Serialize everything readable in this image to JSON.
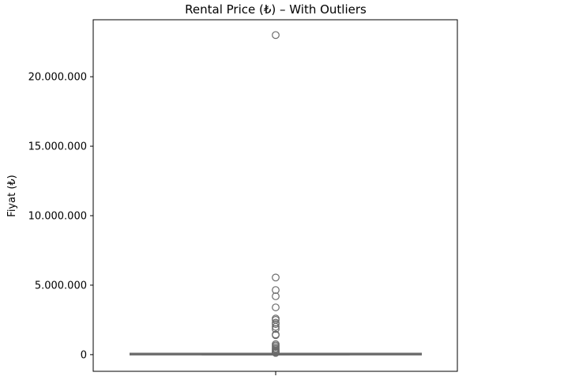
{
  "chart_data": {
    "type": "box",
    "title": "Rental Price (₺) – With Outliers",
    "xlabel": "",
    "ylabel": "Fiyat (₺)",
    "ylim": [
      -1200000,
      24100000
    ],
    "yticks": [
      0,
      5000000,
      10000000,
      15000000,
      20000000
    ],
    "ytick_labels": [
      "0",
      "5.000.000",
      "10.000.000",
      "15.000.000",
      "20.000.000"
    ],
    "grid": false,
    "box": {
      "min": 0,
      "q1": 15000,
      "median": 25000,
      "q3": 45000,
      "max": 90000
    },
    "outliers": [
      23000000,
      5550000,
      4650000,
      4200000,
      3400000,
      2600000,
      2500000,
      2300000,
      2200000,
      2000000,
      1850000,
      1450000,
      1400000,
      750000,
      650000,
      550000,
      450000,
      380000,
      300000,
      250000,
      200000,
      160000,
      120000
    ],
    "colors": {
      "box_edge": "#6b6b6b",
      "outlier_edge": "#6b6b6b",
      "axis": "#000000"
    }
  }
}
